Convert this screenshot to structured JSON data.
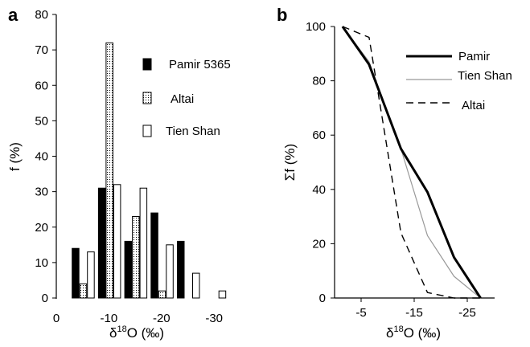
{
  "chart_data": [
    {
      "panel": "a",
      "type": "bar",
      "categories": [
        "-5",
        "-10",
        "-15",
        "-20",
        "-25",
        "-30"
      ],
      "series": [
        {
          "name": "Pamir 5365",
          "fill": "solid",
          "values": [
            14,
            31,
            16,
            24,
            16,
            0
          ]
        },
        {
          "name": "Altai",
          "fill": "dotted",
          "values": [
            4,
            72,
            23,
            2,
            0,
            0
          ]
        },
        {
          "name": "Tien Shan",
          "fill": "hollow",
          "values": [
            13,
            32,
            31,
            15,
            7,
            2
          ]
        }
      ],
      "xticks": [
        "0",
        "-10",
        "-20",
        "-30"
      ],
      "yticks": [
        "0",
        "10",
        "20",
        "30",
        "40",
        "50",
        "60",
        "70",
        "80"
      ],
      "xlabel": {
        "main": "δ",
        "sup": "18",
        "rest": "O (‰)"
      },
      "ylabel": "f (%)",
      "ylim": [
        0,
        80
      ],
      "legend_placement": "right"
    },
    {
      "panel": "b",
      "type": "line",
      "series": [
        {
          "name": "Pamir",
          "style": "thick-solid",
          "x": [
            -1.5,
            -6.5,
            -12.5,
            -17.5,
            -22.5,
            -27.5
          ],
          "y": [
            100,
            86,
            55,
            39,
            15,
            0
          ]
        },
        {
          "name": "Tien Shan",
          "style": "thin-grey",
          "x": [
            -1.5,
            -6.5,
            -12.5,
            -17.5,
            -22.5,
            -27.5
          ],
          "y": [
            100,
            87,
            55,
            23,
            8,
            0
          ]
        },
        {
          "name": "Altai",
          "style": "dashed",
          "x": [
            -1.5,
            -6.5,
            -12.5,
            -17.5,
            -22.5,
            -27.5
          ],
          "y": [
            100,
            96,
            24,
            2,
            0,
            0
          ]
        }
      ],
      "xticks": [
        "-5",
        "-15",
        "-25"
      ],
      "yticks": [
        "0",
        "20",
        "40",
        "60",
        "80",
        "100"
      ],
      "xlabel": {
        "main": "δ",
        "sup": "18",
        "rest": "O (‰)"
      },
      "ylabel": "Σf (%)",
      "xlim": [
        0,
        -30
      ],
      "ylim": [
        0,
        100
      ],
      "legend_placement": "top-right"
    }
  ]
}
